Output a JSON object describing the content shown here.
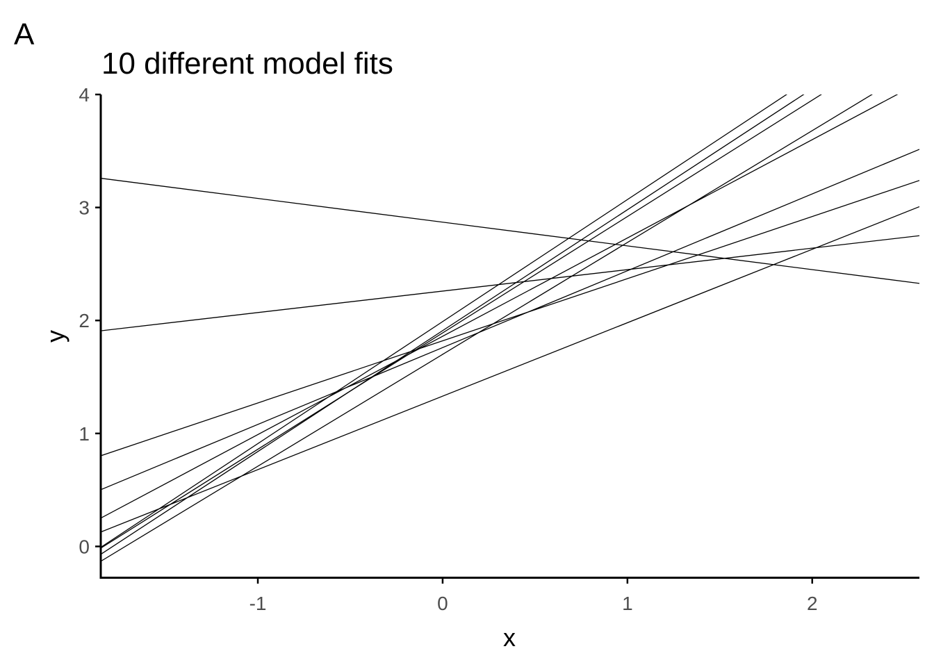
{
  "panel_tag": "A",
  "chart_data": {
    "type": "line",
    "title": "10 different model fits",
    "xlabel": "x",
    "ylabel": "y",
    "xlim": [
      -1.85,
      2.58
    ],
    "ylim": [
      -0.28,
      4.0
    ],
    "x_ticks": [
      {
        "value": -1,
        "label": "-1"
      },
      {
        "value": 0,
        "label": "0"
      },
      {
        "value": 1,
        "label": "1"
      },
      {
        "value": 2,
        "label": "2"
      }
    ],
    "y_ticks": [
      {
        "value": 0,
        "label": "0"
      },
      {
        "value": 1,
        "label": "1"
      },
      {
        "value": 2,
        "label": "2"
      },
      {
        "value": 3,
        "label": "3"
      },
      {
        "value": 4,
        "label": "4"
      }
    ],
    "grid": false,
    "legend": "none",
    "line_color": "#000000",
    "series": [
      {
        "intercept": 1.99,
        "slope": 1.08
      },
      {
        "intercept": 1.91,
        "slope": 1.07
      },
      {
        "intercept": 1.89,
        "slope": 1.03
      },
      {
        "intercept": 1.7,
        "slope": 0.99
      },
      {
        "intercept": 1.86,
        "slope": 0.87
      },
      {
        "intercept": 1.82,
        "slope": 0.55
      },
      {
        "intercept": 1.76,
        "slope": 0.68
      },
      {
        "intercept": 1.33,
        "slope": 0.65
      },
      {
        "intercept": 2.26,
        "slope": 0.19
      },
      {
        "intercept": 2.87,
        "slope": -0.21
      }
    ]
  }
}
